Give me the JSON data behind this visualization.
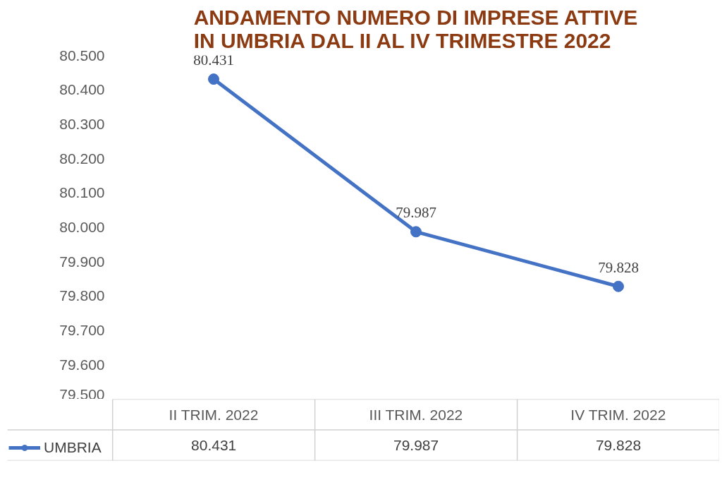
{
  "chart_data": {
    "type": "line",
    "title": "ANDAMENTO NUMERO DI IMPRESE ATTIVE\nIN UMBRIA DAL II AL IV TRIMESTRE 2022",
    "categories": [
      "II TRIM. 2022",
      "III TRIM. 2022",
      "IV TRIM. 2022"
    ],
    "series": [
      {
        "name": "UMBRIA",
        "color": "#4472c4",
        "values": [
          80431,
          79987,
          79828
        ],
        "value_labels": [
          "80.431",
          "79.987",
          "79.828"
        ]
      }
    ],
    "ylim": [
      79500,
      80500
    ],
    "yticks": [
      {
        "value": 79500,
        "label": "79.500"
      },
      {
        "value": 79600,
        "label": "79.600"
      },
      {
        "value": 79700,
        "label": "79.700"
      },
      {
        "value": 79800,
        "label": "79.800"
      },
      {
        "value": 79900,
        "label": "79.900"
      },
      {
        "value": 80000,
        "label": "80.000"
      },
      {
        "value": 80100,
        "label": "80.100"
      },
      {
        "value": 80200,
        "label": "80.200"
      },
      {
        "value": 80300,
        "label": "80.300"
      },
      {
        "value": 80400,
        "label": "80.400"
      },
      {
        "value": 80500,
        "label": "80.500"
      }
    ],
    "grid": false,
    "legend": "bottom",
    "marker": "circle",
    "line_style": "solid"
  }
}
